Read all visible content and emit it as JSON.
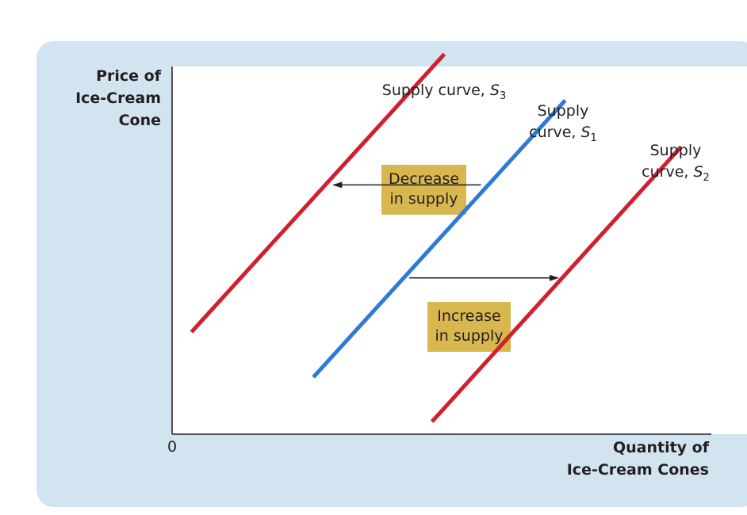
{
  "chart_data": {
    "type": "line",
    "ylabel": [
      "Price of",
      "Ice-Cream",
      "Cone"
    ],
    "xlabel": [
      "Quantity of",
      "Ice-Cream Cones"
    ],
    "origin_label": "0",
    "xlim": [
      0,
      100
    ],
    "ylim": [
      0,
      100
    ],
    "series": [
      {
        "name_lines": [
          "Supply curve, S"
        ],
        "subscript": "3",
        "color": "#d0202e",
        "points": [
          [
            3.6,
            27.8
          ],
          [
            50.5,
            103.4
          ]
        ]
      },
      {
        "name_lines": [
          "Supply",
          "curve, S"
        ],
        "subscript": "1",
        "color": "#2e7ad6",
        "points": [
          [
            26.2,
            15.5
          ],
          [
            72.9,
            90.8
          ]
        ]
      },
      {
        "name_lines": [
          "Supply",
          "curve, S"
        ],
        "subscript": "2",
        "color": "#d0202e",
        "points": [
          [
            48.2,
            3.4
          ],
          [
            94.4,
            78.2
          ]
        ]
      }
    ],
    "annotations": [
      {
        "lines": [
          "Decrease",
          "in supply"
        ],
        "arrow_from": [
          57.3,
          67.8
        ],
        "arrow_to": [
          29.9,
          67.8
        ]
      },
      {
        "lines": [
          "Increase",
          "in supply"
        ],
        "arrow_from": [
          44.0,
          42.5
        ],
        "arrow_to": [
          71.6,
          42.5
        ]
      }
    ],
    "colors": {
      "background": "#d3e4f1",
      "plot_area": "#ffffff",
      "annotation_box": "#d8b84e",
      "axis": "#231f20"
    }
  }
}
